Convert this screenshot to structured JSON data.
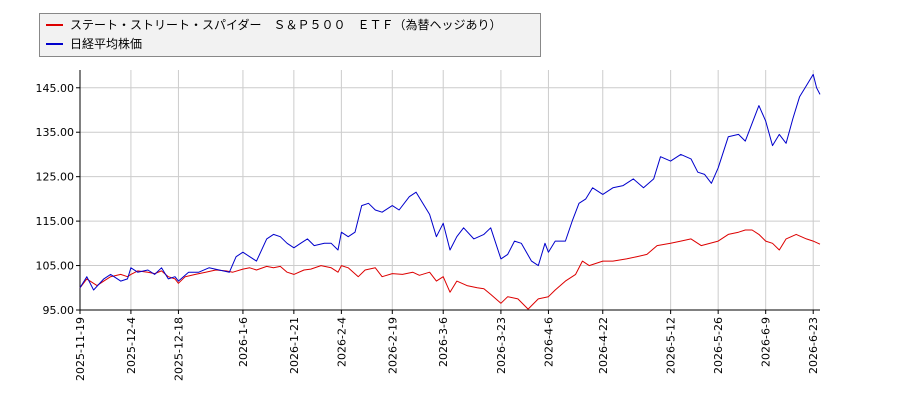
{
  "chart_data": {
    "type": "line",
    "legend_position": "top-left",
    "grid": true,
    "ylim": [
      95,
      149
    ],
    "y_ticks": [
      "95.00",
      "105.00",
      "115.00",
      "125.00",
      "135.00",
      "145.00"
    ],
    "y_tick_values": [
      95,
      105,
      115,
      125,
      135,
      145
    ],
    "x_ticks": [
      "2025-11-19",
      "2025-12-4",
      "2025-12-18",
      "2026-1-6",
      "2026-1-21",
      "2026-2-4",
      "2026-2-19",
      "2026-3-6",
      "2026-3-23",
      "2026-4-6",
      "2026-4-22",
      "2026-5-12",
      "2026-5-26",
      "2026-6-9",
      "2026-6-23"
    ],
    "x_tick_dates": [
      "2025-11-19",
      "2025-12-04",
      "2025-12-18",
      "2026-01-06",
      "2026-01-21",
      "2026-02-04",
      "2026-02-19",
      "2026-03-06",
      "2026-03-23",
      "2026-04-06",
      "2026-04-22",
      "2026-05-12",
      "2026-05-26",
      "2026-06-09",
      "2026-06-23"
    ],
    "series": [
      {
        "name": "ステート・ストリート・スパイダー　Ｓ＆Ｐ５００　ＥＴＦ（為替ヘッジあり）",
        "color": "#dd0000",
        "points": [
          [
            "2025-11-19",
            100.0
          ],
          [
            "2025-11-21",
            102.0
          ],
          [
            "2025-11-24",
            100.5
          ],
          [
            "2025-11-26",
            101.5
          ],
          [
            "2025-11-28",
            102.5
          ],
          [
            "2025-12-01",
            103.0
          ],
          [
            "2025-12-03",
            102.5
          ],
          [
            "2025-12-04",
            103.0
          ],
          [
            "2025-12-06",
            103.8
          ],
          [
            "2025-12-09",
            103.5
          ],
          [
            "2025-12-11",
            103.2
          ],
          [
            "2025-12-13",
            103.8
          ],
          [
            "2025-12-15",
            102.5
          ],
          [
            "2025-12-17",
            102.0
          ],
          [
            "2025-12-18",
            101.0
          ],
          [
            "2025-12-20",
            102.5
          ],
          [
            "2025-12-23",
            103.0
          ],
          [
            "2025-12-26",
            103.5
          ],
          [
            "2025-12-29",
            104.0
          ],
          [
            "2026-01-01",
            103.8
          ],
          [
            "2026-01-03",
            103.5
          ],
          [
            "2026-01-06",
            104.2
          ],
          [
            "2026-01-08",
            104.5
          ],
          [
            "2026-01-10",
            104.0
          ],
          [
            "2026-01-13",
            104.8
          ],
          [
            "2026-01-15",
            104.5
          ],
          [
            "2026-01-17",
            104.8
          ],
          [
            "2026-01-19",
            103.5
          ],
          [
            "2026-01-21",
            103.0
          ],
          [
            "2026-01-24",
            104.0
          ],
          [
            "2026-01-26",
            104.2
          ],
          [
            "2026-01-29",
            105.0
          ],
          [
            "2026-02-01",
            104.5
          ],
          [
            "2026-02-03",
            103.5
          ],
          [
            "2026-02-04",
            105.0
          ],
          [
            "2026-02-06",
            104.5
          ],
          [
            "2026-02-09",
            102.5
          ],
          [
            "2026-02-11",
            104.0
          ],
          [
            "2026-02-14",
            104.5
          ],
          [
            "2026-02-16",
            102.5
          ],
          [
            "2026-02-19",
            103.2
          ],
          [
            "2026-02-22",
            103.0
          ],
          [
            "2026-02-25",
            103.5
          ],
          [
            "2026-02-27",
            102.8
          ],
          [
            "2026-03-02",
            103.5
          ],
          [
            "2026-03-04",
            101.5
          ],
          [
            "2026-03-06",
            102.5
          ],
          [
            "2026-03-08",
            99.0
          ],
          [
            "2026-03-10",
            101.5
          ],
          [
            "2026-03-13",
            100.5
          ],
          [
            "2026-03-16",
            100.0
          ],
          [
            "2026-03-18",
            99.8
          ],
          [
            "2026-03-20",
            98.5
          ],
          [
            "2026-03-23",
            96.5
          ],
          [
            "2026-03-25",
            98.0
          ],
          [
            "2026-03-28",
            97.5
          ],
          [
            "2026-03-31",
            95.2
          ],
          [
            "2026-04-03",
            97.5
          ],
          [
            "2026-04-06",
            98.0
          ],
          [
            "2026-04-08",
            99.5
          ],
          [
            "2026-04-11",
            101.5
          ],
          [
            "2026-04-14",
            103.0
          ],
          [
            "2026-04-16",
            106.0
          ],
          [
            "2026-04-18",
            105.0
          ],
          [
            "2026-04-22",
            106.0
          ],
          [
            "2026-04-25",
            106.0
          ],
          [
            "2026-04-29",
            106.5
          ],
          [
            "2026-05-02",
            107.0
          ],
          [
            "2026-05-05",
            107.5
          ],
          [
            "2026-05-08",
            109.5
          ],
          [
            "2026-05-12",
            110.0
          ],
          [
            "2026-05-15",
            110.5
          ],
          [
            "2026-05-18",
            111.0
          ],
          [
            "2026-05-21",
            109.5
          ],
          [
            "2026-05-26",
            110.5
          ],
          [
            "2026-05-29",
            112.0
          ],
          [
            "2026-06-01",
            112.5
          ],
          [
            "2026-06-03",
            113.0
          ],
          [
            "2026-06-05",
            113.0
          ],
          [
            "2026-06-07",
            112.0
          ],
          [
            "2026-06-09",
            110.5
          ],
          [
            "2026-06-11",
            110.0
          ],
          [
            "2026-06-13",
            108.5
          ],
          [
            "2026-06-15",
            111.0
          ],
          [
            "2026-06-18",
            112.0
          ],
          [
            "2026-06-21",
            111.0
          ],
          [
            "2026-06-23",
            110.5
          ],
          [
            "2026-06-25",
            109.8
          ]
        ]
      },
      {
        "name": "日経平均株価",
        "color": "#0000cc",
        "points": [
          [
            "2025-11-19",
            100.0
          ],
          [
            "2025-11-21",
            102.5
          ],
          [
            "2025-11-23",
            99.5
          ],
          [
            "2025-11-26",
            102.0
          ],
          [
            "2025-11-28",
            103.0
          ],
          [
            "2025-12-01",
            101.5
          ],
          [
            "2025-12-03",
            102.0
          ],
          [
            "2025-12-04",
            104.5
          ],
          [
            "2025-12-06",
            103.5
          ],
          [
            "2025-12-09",
            104.0
          ],
          [
            "2025-12-11",
            103.0
          ],
          [
            "2025-12-13",
            104.5
          ],
          [
            "2025-12-15",
            102.0
          ],
          [
            "2025-12-17",
            102.5
          ],
          [
            "2025-12-18",
            101.5
          ],
          [
            "2025-12-21",
            103.5
          ],
          [
            "2025-12-24",
            103.5
          ],
          [
            "2025-12-27",
            104.5
          ],
          [
            "2025-12-30",
            104.0
          ],
          [
            "2026-01-02",
            103.5
          ],
          [
            "2026-01-04",
            107.0
          ],
          [
            "2026-01-06",
            108.0
          ],
          [
            "2026-01-08",
            107.0
          ],
          [
            "2026-01-10",
            106.0
          ],
          [
            "2026-01-13",
            111.0
          ],
          [
            "2026-01-15",
            112.0
          ],
          [
            "2026-01-17",
            111.5
          ],
          [
            "2026-01-19",
            110.0
          ],
          [
            "2026-01-21",
            109.0
          ],
          [
            "2026-01-23",
            110.0
          ],
          [
            "2026-01-25",
            111.0
          ],
          [
            "2026-01-27",
            109.5
          ],
          [
            "2026-01-30",
            110.0
          ],
          [
            "2026-02-01",
            110.0
          ],
          [
            "2026-02-03",
            108.5
          ],
          [
            "2026-02-04",
            112.5
          ],
          [
            "2026-02-06",
            111.5
          ],
          [
            "2026-02-08",
            112.5
          ],
          [
            "2026-02-10",
            118.5
          ],
          [
            "2026-02-12",
            119.0
          ],
          [
            "2026-02-14",
            117.5
          ],
          [
            "2026-02-16",
            117.0
          ],
          [
            "2026-02-19",
            118.5
          ],
          [
            "2026-02-21",
            117.5
          ],
          [
            "2026-02-24",
            120.5
          ],
          [
            "2026-02-26",
            121.5
          ],
          [
            "2026-02-28",
            119.0
          ],
          [
            "2026-03-02",
            116.5
          ],
          [
            "2026-03-04",
            111.5
          ],
          [
            "2026-03-06",
            114.5
          ],
          [
            "2026-03-08",
            108.5
          ],
          [
            "2026-03-10",
            111.5
          ],
          [
            "2026-03-12",
            113.5
          ],
          [
            "2026-03-15",
            111.0
          ],
          [
            "2026-03-18",
            112.0
          ],
          [
            "2026-03-20",
            113.5
          ],
          [
            "2026-03-23",
            106.5
          ],
          [
            "2026-03-25",
            107.5
          ],
          [
            "2026-03-27",
            110.5
          ],
          [
            "2026-03-29",
            110.0
          ],
          [
            "2026-04-01",
            106.0
          ],
          [
            "2026-04-03",
            105.0
          ],
          [
            "2026-04-05",
            110.0
          ],
          [
            "2026-04-06",
            108.0
          ],
          [
            "2026-04-08",
            110.5
          ],
          [
            "2026-04-11",
            110.5
          ],
          [
            "2026-04-13",
            115.0
          ],
          [
            "2026-04-15",
            119.0
          ],
          [
            "2026-04-17",
            120.0
          ],
          [
            "2026-04-19",
            122.5
          ],
          [
            "2026-04-22",
            121.0
          ],
          [
            "2026-04-25",
            122.5
          ],
          [
            "2026-04-28",
            123.0
          ],
          [
            "2026-05-01",
            124.5
          ],
          [
            "2026-05-04",
            122.5
          ],
          [
            "2026-05-07",
            124.5
          ],
          [
            "2026-05-09",
            129.5
          ],
          [
            "2026-05-12",
            128.5
          ],
          [
            "2026-05-15",
            130.0
          ],
          [
            "2026-05-18",
            129.0
          ],
          [
            "2026-05-20",
            126.0
          ],
          [
            "2026-05-22",
            125.5
          ],
          [
            "2026-05-24",
            123.5
          ],
          [
            "2026-05-26",
            127.0
          ],
          [
            "2026-05-29",
            134.0
          ],
          [
            "2026-06-01",
            134.5
          ],
          [
            "2026-06-03",
            133.0
          ],
          [
            "2026-06-05",
            137.0
          ],
          [
            "2026-06-07",
            141.0
          ],
          [
            "2026-06-09",
            137.5
          ],
          [
            "2026-06-11",
            132.0
          ],
          [
            "2026-06-13",
            134.5
          ],
          [
            "2026-06-15",
            132.5
          ],
          [
            "2026-06-17",
            138.0
          ],
          [
            "2026-06-19",
            143.0
          ],
          [
            "2026-06-21",
            145.5
          ],
          [
            "2026-06-23",
            148.0
          ],
          [
            "2026-06-24",
            145.0
          ],
          [
            "2026-06-25",
            143.5
          ]
        ]
      }
    ]
  }
}
